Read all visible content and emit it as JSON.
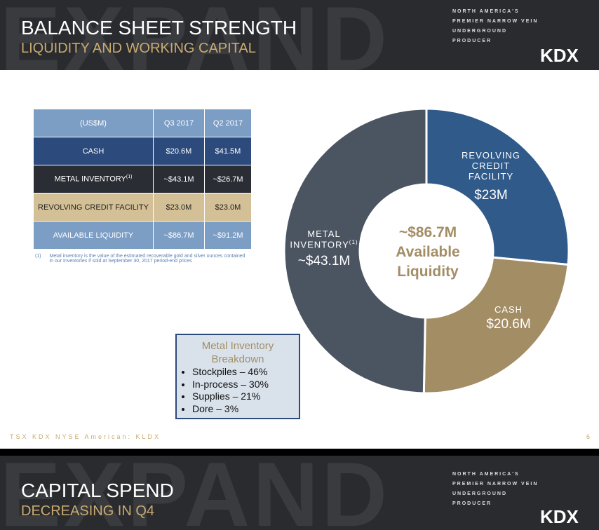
{
  "header": {
    "watermark": "EXPAND",
    "title": "BALANCE SHEET STRENGTH",
    "subtitle": "LIQUIDITY AND WORKING CAPITAL",
    "tagline": [
      "NORTH AMERICA'S",
      "PREMIER NARROW VEIN",
      "UNDERGROUND",
      "PRODUCER"
    ],
    "logo": "KDX"
  },
  "table": {
    "columns": [
      "(US$M)",
      "Q3 2017",
      "Q2 2017"
    ],
    "rows": [
      [
        "CASH",
        "$20.6M",
        "$41.5M"
      ],
      [
        "METAL INVENTORY",
        "~$43.1M",
        "~$26.7M"
      ],
      [
        "REVOLVING CREDIT FACILITY",
        "$23.0M",
        "$23.0M"
      ],
      [
        "AVAILABLE LIQUIDITY",
        "~$86.7M",
        "~$91.2M"
      ]
    ],
    "note_marker": "(1)"
  },
  "footnote": {
    "marker": "(1)",
    "text": "Metal inventory is the value of the estimated recoverable gold and silver ounces contained in our Inventories if sold at September 30, 2017 period-end prices"
  },
  "chart_data": {
    "type": "donut",
    "categories": [
      "REVOLVING CREDIT FACILITY",
      "CASH",
      "METAL INVENTORY"
    ],
    "values": [
      23,
      20.6,
      43.1
    ],
    "value_labels": [
      "$23M",
      "$20.6M",
      "~$43.1M"
    ],
    "colors": [
      "#2f5a8a",
      "#a38d65",
      "#4b5561"
    ],
    "category_note": "(1)",
    "center_value": "~$86.7M",
    "center_text": "Available Liquidity"
  },
  "breakdown": {
    "title": "Metal Inventory Breakdown",
    "items": [
      "Stockpiles – 46%",
      "In-process – 30%",
      "Supplies – 21%",
      "Dore – 3%"
    ]
  },
  "footer": {
    "left": "TSX KDX NYSE American: KLDX",
    "page": "6"
  },
  "next_slide": {
    "watermark": "EXPAND",
    "title": "CAPITAL SPEND",
    "subtitle": "DECREASING IN Q4",
    "tagline": [
      "NORTH AMERICA'S",
      "PREMIER NARROW VEIN",
      "UNDERGROUND",
      "PRODUCER"
    ],
    "logo": "KDX"
  }
}
